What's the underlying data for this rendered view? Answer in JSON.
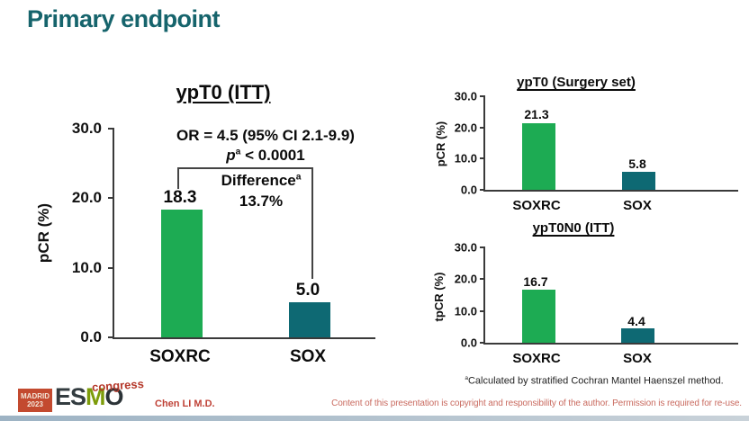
{
  "slide_title": "Primary endpoint",
  "colors": {
    "title_teal": "#16646c",
    "bar_green": "#1dab53",
    "bar_teal": "#0e6973",
    "accent_red": "#bf4136"
  },
  "chart_data": [
    {
      "type": "bar",
      "title": "ypT0 (ITT)",
      "ylabel": "pCR (%)",
      "ylim": [
        0,
        30
      ],
      "yticks": [
        "30.0",
        "20.0",
        "10.0",
        "0.0"
      ],
      "categories": [
        "SOXRC",
        "SOX"
      ],
      "values": [
        18.3,
        5.0
      ],
      "value_labels": [
        "18.3",
        "5.0"
      ],
      "bar_colors": [
        "#1dab53",
        "#0e6973"
      ],
      "grid": false,
      "annotations": {
        "or_text": "OR = 4.5 (95% CI 2.1-9.9)",
        "p_symbol": "p",
        "p_sup": "a",
        "p_rest": "< 0.0001",
        "diff_label": "Difference",
        "diff_sup": "a",
        "diff_value": "13.7%"
      }
    },
    {
      "type": "bar",
      "title": "ypT0 (Surgery set)",
      "ylabel": "pCR (%)",
      "ylim": [
        0,
        30
      ],
      "yticks": [
        "30.0",
        "20.0",
        "10.0",
        "0.0"
      ],
      "categories": [
        "SOXRC",
        "SOX"
      ],
      "values": [
        21.3,
        5.8
      ],
      "value_labels": [
        "21.3",
        "5.8"
      ],
      "bar_colors": [
        "#1dab53",
        "#0e6973"
      ],
      "grid": false
    },
    {
      "type": "bar",
      "title": "ypT0N0 (ITT)",
      "ylabel": "tpCR (%)",
      "ylim": [
        0,
        30
      ],
      "yticks": [
        "30.0",
        "20.0",
        "10.0",
        "0.0"
      ],
      "categories": [
        "SOXRC",
        "SOX"
      ],
      "values": [
        16.7,
        4.4
      ],
      "value_labels": [
        "16.7",
        "4.4"
      ],
      "bar_colors": [
        "#1dab53",
        "#0e6973"
      ],
      "grid": false
    }
  ],
  "footnote": {
    "sup": "a",
    "text": "Calculated by stratified Cochran Mantel Haenszel method."
  },
  "footer": {
    "author": "Chen LI M.D.",
    "copyright": "Content of this presentation is copyright and responsibility of the author. Permission is required for re-use.",
    "logo": {
      "location": "MADRID",
      "year": "2023",
      "org_es": "ES",
      "org_m": "M",
      "org_o": "O",
      "event": "congress"
    }
  }
}
